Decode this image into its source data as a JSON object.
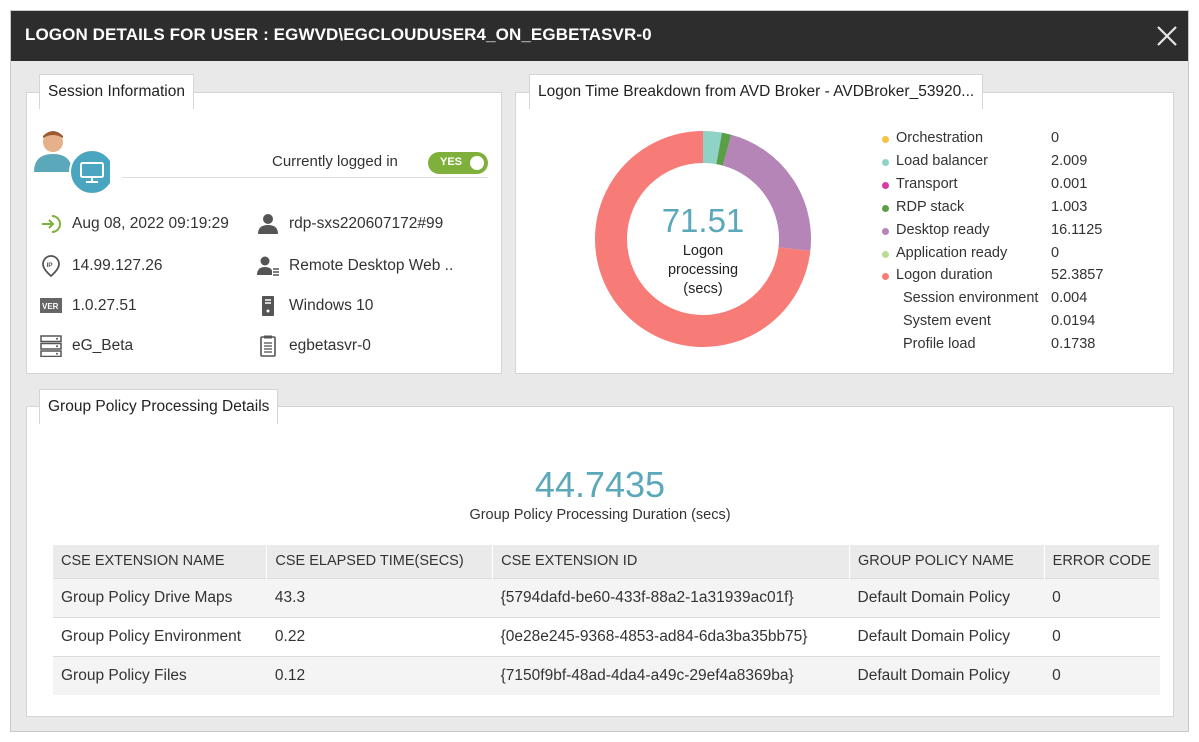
{
  "window": {
    "title": "LOGON DETAILS FOR USER : EGWVD\\EGCLOUDUSER4_ON_EGBETASVR-0",
    "close_icon": "close-icon"
  },
  "session": {
    "tab_label": "Session Information",
    "logged_in_label": "Currently logged in",
    "logged_in_toggle": "YES",
    "logon_time": "Aug 08, 2022 09:19:29",
    "session_name": "rdp-sxs220607172#99",
    "ip_address": "14.99.127.26",
    "client_name": "Remote Desktop Web ..",
    "version": "1.0.27.51",
    "os": "Windows 10",
    "server_group": "eG_Beta",
    "server_name": "egbetasvr-0"
  },
  "breakdown": {
    "tab_label": "Logon Time Breakdown from AVD Broker - AVDBroker_53920..."
  },
  "chart_data": {
    "type": "pie",
    "center_value": "71.51",
    "center_label": [
      "Logon",
      "processing",
      "(secs)"
    ],
    "series": [
      {
        "name": "Orchestration",
        "value_label": "0",
        "value": 0,
        "color": "#f5c342"
      },
      {
        "name": "Load balancer",
        "value_label": "2.009",
        "value": 2.009,
        "color": "#8fd3c6"
      },
      {
        "name": "Transport",
        "value_label": "0.001",
        "value": 0.001,
        "color": "#d63aa6"
      },
      {
        "name": "RDP stack",
        "value_label": "1.003",
        "value": 1.003,
        "color": "#5a9e48"
      },
      {
        "name": "Desktop ready",
        "value_label": "16.1125",
        "value": 16.1125,
        "color": "#b585b8"
      },
      {
        "name": "Application ready",
        "value_label": "0",
        "value": 0,
        "color": "#b9db93"
      },
      {
        "name": "Logon duration",
        "value_label": "52.3857",
        "value": 52.3857,
        "color": "#f77b77"
      }
    ],
    "sub_items": [
      {
        "name": "Session environment",
        "value_label": "0.004"
      },
      {
        "name": "System event",
        "value_label": "0.0194"
      },
      {
        "name": "Profile load",
        "value_label": "0.1738"
      }
    ]
  },
  "group_policy": {
    "tab_label": "Group Policy Processing Details",
    "duration_value": "44.7435",
    "duration_caption": "Group Policy Processing Duration (secs)",
    "columns": [
      "CSE EXTENSION NAME",
      "CSE ELAPSED TIME(SECS)",
      "CSE EXTENSION ID",
      "GROUP POLICY NAME",
      "ERROR CODE"
    ],
    "rows": [
      [
        "Group Policy Drive Maps",
        "43.3",
        "{5794dafd-be60-433f-88a2-1a31939ac01f}",
        "Default Domain Policy",
        "0"
      ],
      [
        "Group Policy Environment",
        "0.22",
        "{0e28e245-9368-4853-ad84-6da3ba35bb75}",
        "Default Domain Policy",
        "0"
      ],
      [
        "Group Policy Files",
        "0.12",
        "{7150f9bf-48ad-4da4-a49c-29ef4a8369ba}",
        "Default Domain Policy",
        "0"
      ]
    ]
  }
}
